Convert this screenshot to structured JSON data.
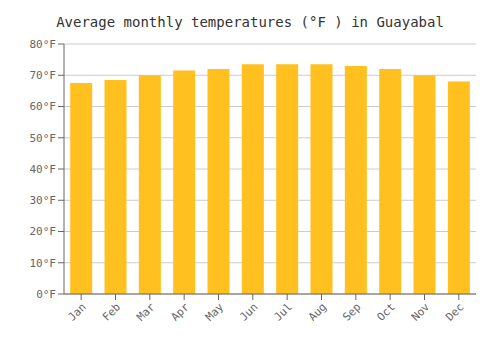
{
  "chart_data": {
    "type": "bar",
    "title": "Average monthly temperatures (°F ) in Guayabal",
    "categories": [
      "Jan",
      "Feb",
      "Mar",
      "Apr",
      "May",
      "Jun",
      "Jul",
      "Aug",
      "Sep",
      "Oct",
      "Nov",
      "Dec"
    ],
    "values": [
      67.5,
      68.5,
      70.0,
      71.5,
      72.0,
      73.5,
      73.5,
      73.5,
      73.0,
      72.0,
      70.0,
      68.0
    ],
    "color": "#FFC020",
    "ylim": [
      0,
      80
    ],
    "yticks": [
      {
        "value": 0,
        "label": "0°F"
      },
      {
        "value": 10,
        "label": "10°F"
      },
      {
        "value": 20,
        "label": "20°F"
      },
      {
        "value": 30,
        "label": "30°F"
      },
      {
        "value": 40,
        "label": "40°F"
      },
      {
        "value": 50,
        "label": "50°F"
      },
      {
        "value": 60,
        "label": "60°F"
      },
      {
        "value": 70,
        "label": "70°F"
      },
      {
        "value": 80,
        "label": "80°F"
      }
    ],
    "grid": true
  }
}
